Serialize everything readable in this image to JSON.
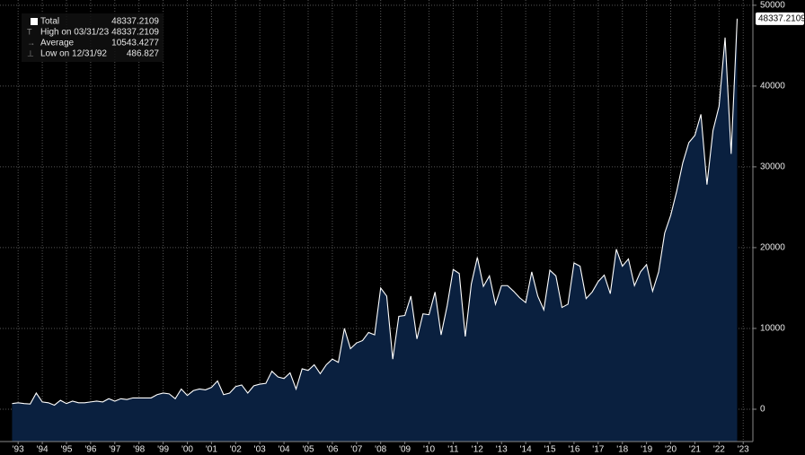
{
  "chart_data": {
    "type": "area",
    "series": [
      {
        "name": "Total",
        "color": "#ffffff",
        "fill": "#0a203f",
        "values": [
          700,
          800,
          700,
          650,
          2000,
          900,
          800,
          500,
          1100,
          700,
          1000,
          800,
          800,
          900,
          1000,
          900,
          1300,
          1000,
          1300,
          1200,
          1400,
          1400,
          1400,
          1400,
          1800,
          2000,
          1900,
          1300,
          2500,
          1700,
          2300,
          2500,
          2400,
          2700,
          3500,
          1800,
          2000,
          2800,
          3000,
          2000,
          2900,
          3100,
          3200,
          4700,
          4000,
          3800,
          4500,
          2500,
          5000,
          4800,
          5500,
          4400,
          5500,
          6200,
          5800,
          10000,
          7500,
          8200,
          8500,
          9500,
          9200,
          15000,
          14000,
          6200,
          11500,
          11600,
          14000,
          8700,
          11800,
          11700,
          14500,
          9200,
          12800,
          17300,
          16800,
          9000,
          15500,
          18800,
          15200,
          16500,
          13000,
          15300,
          15300,
          14600,
          13800,
          13200,
          17000,
          14000,
          12300,
          17200,
          16500,
          12600,
          13000,
          18100,
          17700,
          13700,
          14500,
          15800,
          16600,
          14300,
          19800,
          17700,
          18600,
          15300,
          17000,
          17900,
          14600,
          17000,
          21800,
          24000,
          27000,
          30500,
          33000,
          33900,
          36500,
          27800,
          34500,
          37500,
          46000,
          31600,
          48337.2109
        ]
      }
    ],
    "x": [
      1993.25,
      1993.5,
      1993.75,
      1994,
      1994.25,
      1994.5,
      1994.75,
      1995,
      1995.25,
      1995.5,
      1995.75,
      1996,
      1996.25,
      1996.5,
      1996.75,
      1997,
      1997.25,
      1997.5,
      1997.75,
      1998,
      1998.25,
      1998.5,
      1998.75,
      1999,
      1999.25,
      1999.5,
      1999.75,
      2000,
      2000.25,
      2000.5,
      2000.75,
      2001,
      2001.25,
      2001.5,
      2001.75,
      2002,
      2002.25,
      2002.5,
      2002.75,
      2003,
      2003.25,
      2003.5,
      2003.75,
      2004,
      2004.25,
      2004.5,
      2004.75,
      2005,
      2005.25,
      2005.5,
      2005.75,
      2006,
      2006.25,
      2006.5,
      2006.75,
      2007,
      2007.25,
      2007.5,
      2007.75,
      2008,
      2008.25,
      2008.5,
      2008.75,
      2009,
      2009.25,
      2009.5,
      2009.75,
      2010,
      2010.25,
      2010.5,
      2010.75,
      2011,
      2011.25,
      2011.5,
      2011.75,
      2012,
      2012.25,
      2012.5,
      2012.75,
      2013,
      2013.25,
      2013.5,
      2013.75,
      2014,
      2014.25,
      2014.5,
      2014.75,
      2015,
      2015.25,
      2015.5,
      2015.75,
      2016,
      2016.25,
      2016.5,
      2016.75,
      2017,
      2017.25,
      2017.5,
      2017.75,
      2018,
      2018.25,
      2018.5,
      2018.75,
      2019,
      2019.25,
      2019.5,
      2019.75,
      2020,
      2020.25,
      2020.5,
      2020.75,
      2021,
      2021.25,
      2021.5,
      2021.75,
      2022,
      2022.25,
      2022.5,
      2022.75,
      2023,
      2023.25
    ],
    "xlim": [
      1992.75,
      2023.9
    ],
    "xticks": [
      {
        "value": 1993.5,
        "label": "'93"
      },
      {
        "value": 1994.5,
        "label": "'94"
      },
      {
        "value": 1995.5,
        "label": "'95"
      },
      {
        "value": 1996.5,
        "label": "'96"
      },
      {
        "value": 1997.5,
        "label": "'97"
      },
      {
        "value": 1998.5,
        "label": "'98"
      },
      {
        "value": 1999.5,
        "label": "'99"
      },
      {
        "value": 2000.5,
        "label": "'00"
      },
      {
        "value": 2001.5,
        "label": "'01"
      },
      {
        "value": 2002.5,
        "label": "'02"
      },
      {
        "value": 2003.5,
        "label": "'03"
      },
      {
        "value": 2004.5,
        "label": "'04"
      },
      {
        "value": 2005.5,
        "label": "'05"
      },
      {
        "value": 2006.5,
        "label": "'06"
      },
      {
        "value": 2007.5,
        "label": "'07"
      },
      {
        "value": 2008.5,
        "label": "'08"
      },
      {
        "value": 2009.5,
        "label": "'09"
      },
      {
        "value": 2010.5,
        "label": "'10"
      },
      {
        "value": 2011.5,
        "label": "'11"
      },
      {
        "value": 2012.5,
        "label": "'12"
      },
      {
        "value": 2013.5,
        "label": "'13"
      },
      {
        "value": 2014.5,
        "label": "'14"
      },
      {
        "value": 2015.5,
        "label": "'15"
      },
      {
        "value": 2016.5,
        "label": "'16"
      },
      {
        "value": 2017.5,
        "label": "'17"
      },
      {
        "value": 2018.5,
        "label": "'18"
      },
      {
        "value": 2019.5,
        "label": "'19"
      },
      {
        "value": 2020.5,
        "label": "'20"
      },
      {
        "value": 2021.5,
        "label": "'21"
      },
      {
        "value": 2022.5,
        "label": "'22"
      },
      {
        "value": 2023.5,
        "label": "'23"
      }
    ],
    "ylim": [
      -4000,
      50650
    ],
    "yticks": [
      0,
      10000,
      20000,
      30000,
      40000,
      50000
    ],
    "grid": true,
    "legend": [
      {
        "label": "Total",
        "value": 48337.2109
      },
      {
        "label": "High on 03/31/23",
        "value": 48337.2109
      },
      {
        "label": "Average",
        "value": 10543.4277
      },
      {
        "label": "Low on 12/31/92",
        "value": 486.827
      }
    ]
  }
}
